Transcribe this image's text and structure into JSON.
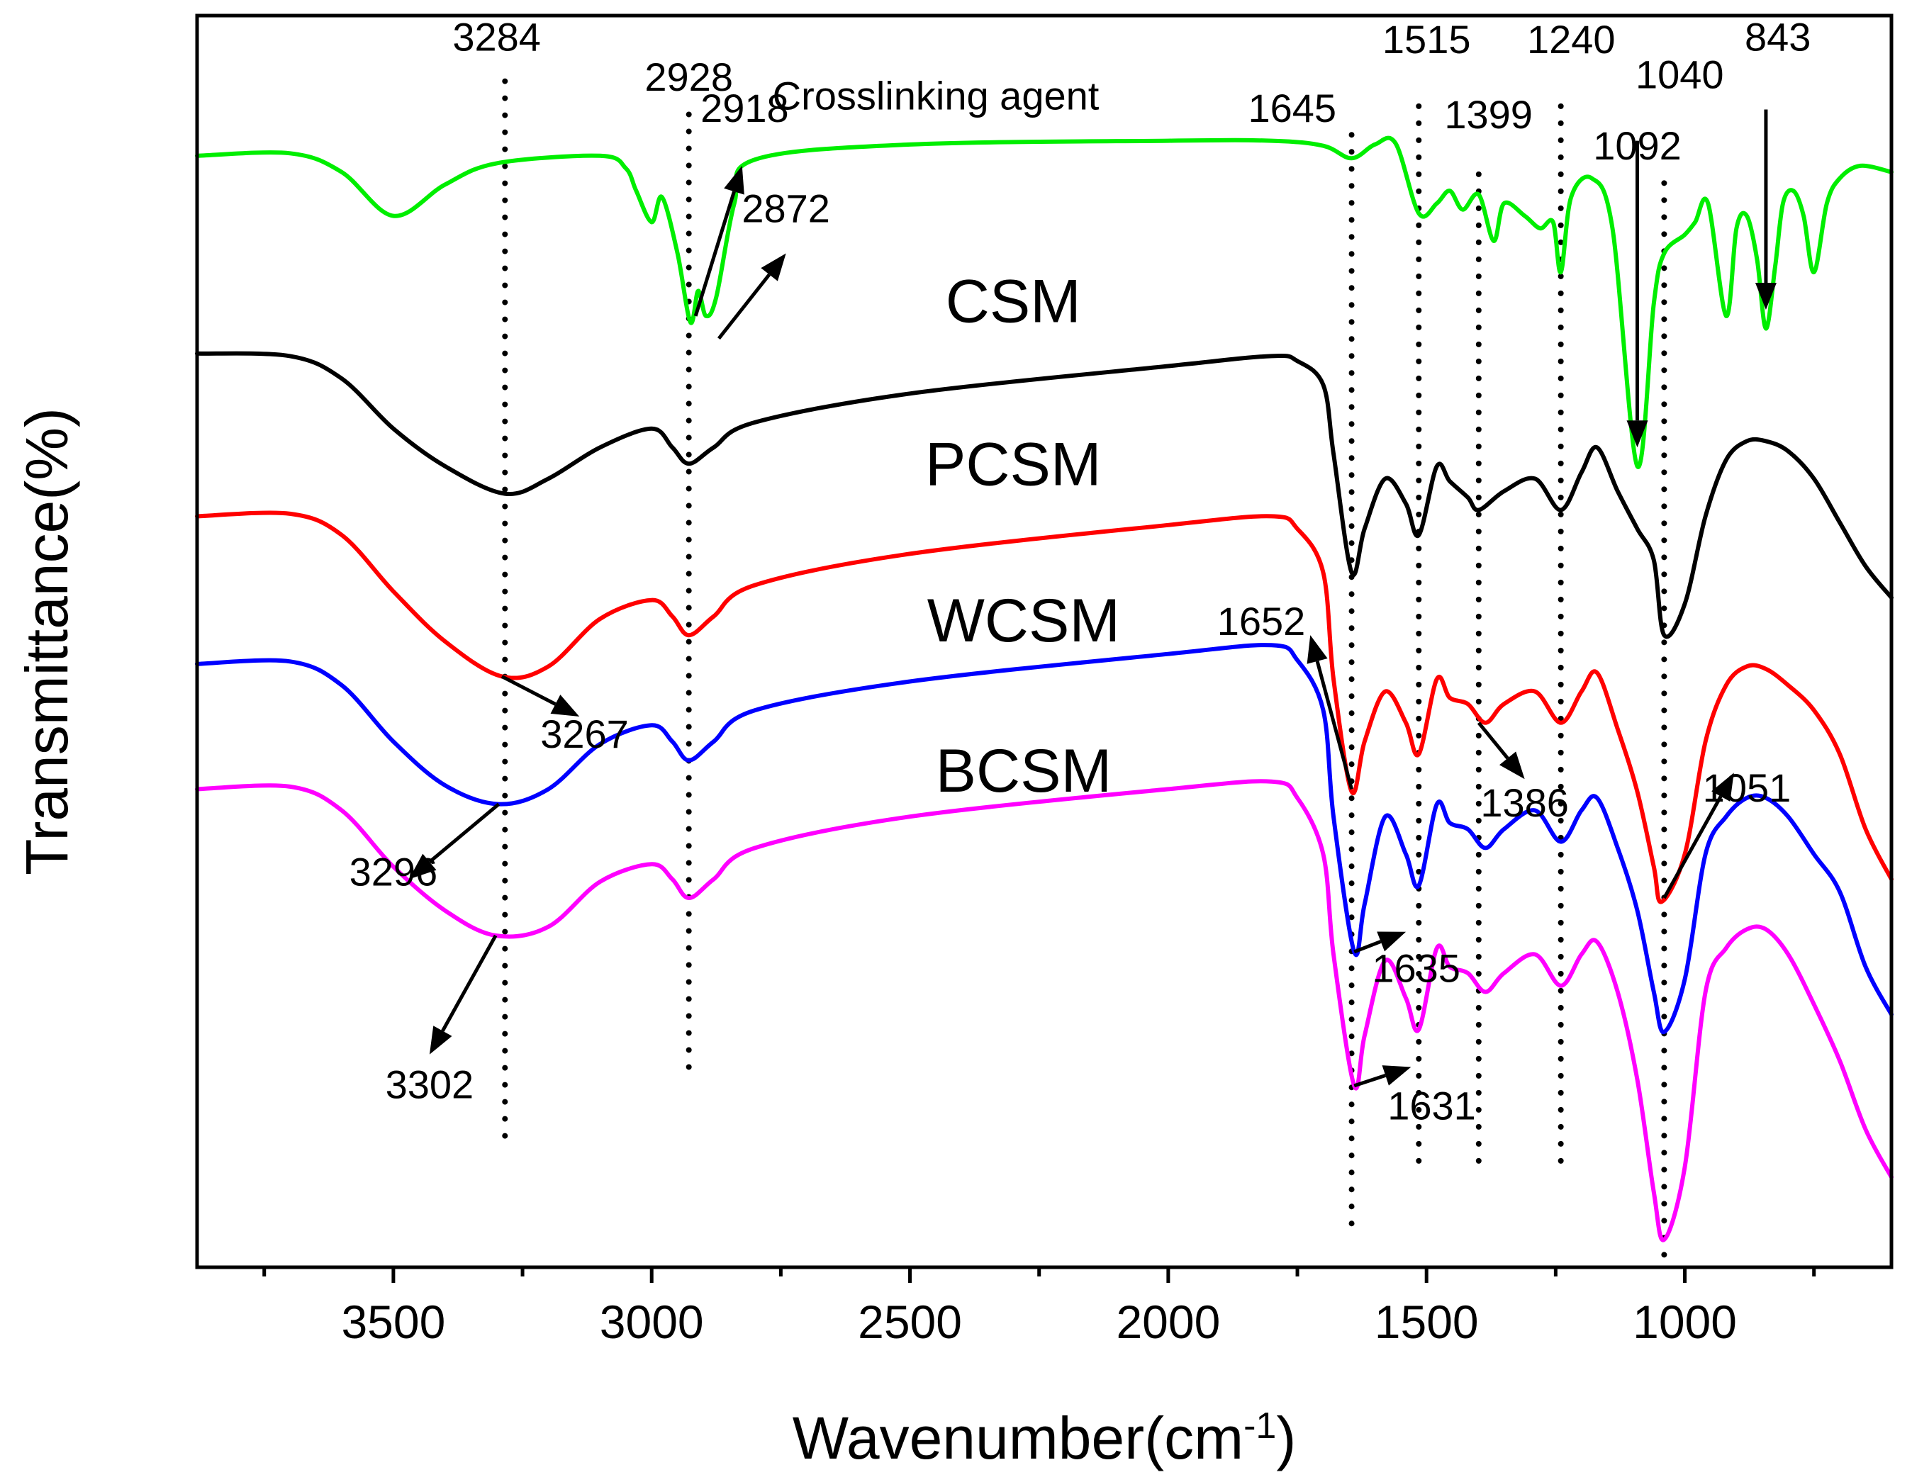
{
  "chart_data": {
    "type": "line",
    "title": "",
    "xlabel": "Wavenumber(cm",
    "xlabel_sup": "-1",
    "xlabel_close": ")",
    "ylabel": "Transmittance(%)",
    "xlim": [
      3880,
      600
    ],
    "x_reversed": true,
    "x_ticks": [
      3500,
      3000,
      2500,
      2000,
      1500,
      1000
    ],
    "x_tick_labels": [
      "3500",
      "3000",
      "2500",
      "2000",
      "1500",
      "1000"
    ],
    "x_minor_ticks": [
      3750,
      3250,
      2750,
      2250,
      1750,
      1250,
      750
    ],
    "y_tick_labels": [],
    "ylim": [
      0,
      10
    ],
    "grid": false,
    "series": [
      {
        "name": "Crosslinking agent",
        "color": "#00ee00",
        "points": [
          [
            3880,
            8.88
          ],
          [
            3700,
            8.9
          ],
          [
            3600,
            8.75
          ],
          [
            3500,
            8.4
          ],
          [
            3400,
            8.65
          ],
          [
            3300,
            8.82
          ],
          [
            3100,
            8.88
          ],
          [
            3050,
            8.78
          ],
          [
            3030,
            8.6
          ],
          [
            3000,
            8.35
          ],
          [
            2980,
            8.55
          ],
          [
            2950,
            8.1
          ],
          [
            2925,
            7.55
          ],
          [
            2910,
            7.8
          ],
          [
            2895,
            7.6
          ],
          [
            2875,
            7.75
          ],
          [
            2840,
            8.5
          ],
          [
            2800,
            8.85
          ],
          [
            2500,
            8.97
          ],
          [
            2000,
            9.0
          ],
          [
            1800,
            9.0
          ],
          [
            1700,
            8.96
          ],
          [
            1645,
            8.86
          ],
          [
            1600,
            8.97
          ],
          [
            1560,
            8.98
          ],
          [
            1515,
            8.42
          ],
          [
            1480,
            8.5
          ],
          [
            1455,
            8.6
          ],
          [
            1430,
            8.45
          ],
          [
            1399,
            8.57
          ],
          [
            1370,
            8.2
          ],
          [
            1350,
            8.5
          ],
          [
            1310,
            8.4
          ],
          [
            1280,
            8.3
          ],
          [
            1255,
            8.35
          ],
          [
            1240,
            7.95
          ],
          [
            1220,
            8.55
          ],
          [
            1180,
            8.7
          ],
          [
            1140,
            8.3
          ],
          [
            1092,
            6.4
          ],
          [
            1060,
            7.7
          ],
          [
            1040,
            8.1
          ],
          [
            1000,
            8.25
          ],
          [
            980,
            8.35
          ],
          [
            955,
            8.5
          ],
          [
            920,
            7.6
          ],
          [
            900,
            8.3
          ],
          [
            880,
            8.4
          ],
          [
            860,
            8.05
          ],
          [
            843,
            7.5
          ],
          [
            825,
            8.0
          ],
          [
            810,
            8.5
          ],
          [
            790,
            8.6
          ],
          [
            770,
            8.4
          ],
          [
            750,
            7.95
          ],
          [
            725,
            8.5
          ],
          [
            700,
            8.7
          ],
          [
            660,
            8.8
          ],
          [
            600,
            8.75
          ]
        ]
      },
      {
        "name": "CSM",
        "color": "#000000",
        "points": [
          [
            3880,
            7.3
          ],
          [
            3700,
            7.28
          ],
          [
            3600,
            7.1
          ],
          [
            3500,
            6.7
          ],
          [
            3400,
            6.4
          ],
          [
            3284,
            6.18
          ],
          [
            3200,
            6.3
          ],
          [
            3100,
            6.55
          ],
          [
            3000,
            6.7
          ],
          [
            2960,
            6.55
          ],
          [
            2928,
            6.42
          ],
          [
            2880,
            6.55
          ],
          [
            2800,
            6.75
          ],
          [
            2500,
            6.98
          ],
          [
            2000,
            7.2
          ],
          [
            1800,
            7.28
          ],
          [
            1750,
            7.24
          ],
          [
            1700,
            7.05
          ],
          [
            1680,
            6.5
          ],
          [
            1645,
            5.55
          ],
          [
            1620,
            5.9
          ],
          [
            1580,
            6.3
          ],
          [
            1540,
            6.1
          ],
          [
            1515,
            5.85
          ],
          [
            1480,
            6.4
          ],
          [
            1455,
            6.28
          ],
          [
            1420,
            6.15
          ],
          [
            1399,
            6.05
          ],
          [
            1350,
            6.2
          ],
          [
            1290,
            6.3
          ],
          [
            1240,
            6.05
          ],
          [
            1200,
            6.35
          ],
          [
            1170,
            6.55
          ],
          [
            1130,
            6.2
          ],
          [
            1092,
            5.9
          ],
          [
            1060,
            5.65
          ],
          [
            1040,
            5.05
          ],
          [
            1000,
            5.3
          ],
          [
            960,
            6.0
          ],
          [
            920,
            6.45
          ],
          [
            880,
            6.6
          ],
          [
            843,
            6.6
          ],
          [
            800,
            6.52
          ],
          [
            750,
            6.3
          ],
          [
            700,
            5.95
          ],
          [
            650,
            5.6
          ],
          [
            600,
            5.35
          ]
        ]
      },
      {
        "name": "PCSM",
        "color": "#ff0000",
        "points": [
          [
            3880,
            6.0
          ],
          [
            3700,
            6.02
          ],
          [
            3600,
            5.85
          ],
          [
            3500,
            5.4
          ],
          [
            3400,
            5.0
          ],
          [
            3290,
            4.72
          ],
          [
            3200,
            4.8
          ],
          [
            3100,
            5.18
          ],
          [
            3000,
            5.33
          ],
          [
            2960,
            5.2
          ],
          [
            2928,
            5.05
          ],
          [
            2880,
            5.2
          ],
          [
            2800,
            5.45
          ],
          [
            2500,
            5.7
          ],
          [
            2000,
            5.93
          ],
          [
            1800,
            6.0
          ],
          [
            1750,
            5.9
          ],
          [
            1700,
            5.55
          ],
          [
            1680,
            4.7
          ],
          [
            1645,
            3.8
          ],
          [
            1620,
            4.2
          ],
          [
            1580,
            4.6
          ],
          [
            1540,
            4.35
          ],
          [
            1515,
            4.1
          ],
          [
            1480,
            4.7
          ],
          [
            1455,
            4.55
          ],
          [
            1420,
            4.5
          ],
          [
            1386,
            4.35
          ],
          [
            1350,
            4.5
          ],
          [
            1290,
            4.6
          ],
          [
            1240,
            4.35
          ],
          [
            1200,
            4.6
          ],
          [
            1170,
            4.75
          ],
          [
            1130,
            4.3
          ],
          [
            1092,
            3.8
          ],
          [
            1060,
            3.2
          ],
          [
            1045,
            2.92
          ],
          [
            1000,
            3.3
          ],
          [
            960,
            4.2
          ],
          [
            920,
            4.65
          ],
          [
            880,
            4.8
          ],
          [
            843,
            4.78
          ],
          [
            800,
            4.65
          ],
          [
            750,
            4.45
          ],
          [
            700,
            4.1
          ],
          [
            650,
            3.5
          ],
          [
            600,
            3.1
          ]
        ]
      },
      {
        "name": "WCSM",
        "color": "#0000ff",
        "points": [
          [
            3880,
            4.82
          ],
          [
            3700,
            4.84
          ],
          [
            3600,
            4.65
          ],
          [
            3500,
            4.2
          ],
          [
            3400,
            3.85
          ],
          [
            3296,
            3.7
          ],
          [
            3200,
            3.82
          ],
          [
            3100,
            4.18
          ],
          [
            3000,
            4.33
          ],
          [
            2960,
            4.2
          ],
          [
            2928,
            4.05
          ],
          [
            2880,
            4.2
          ],
          [
            2800,
            4.45
          ],
          [
            2500,
            4.68
          ],
          [
            2000,
            4.9
          ],
          [
            1800,
            4.97
          ],
          [
            1750,
            4.85
          ],
          [
            1700,
            4.45
          ],
          [
            1680,
            3.6
          ],
          [
            1640,
            2.52
          ],
          [
            1620,
            2.9
          ],
          [
            1580,
            3.6
          ],
          [
            1540,
            3.3
          ],
          [
            1515,
            3.05
          ],
          [
            1480,
            3.7
          ],
          [
            1455,
            3.55
          ],
          [
            1420,
            3.5
          ],
          [
            1386,
            3.35
          ],
          [
            1350,
            3.5
          ],
          [
            1290,
            3.65
          ],
          [
            1240,
            3.4
          ],
          [
            1200,
            3.65
          ],
          [
            1170,
            3.75
          ],
          [
            1130,
            3.35
          ],
          [
            1092,
            2.85
          ],
          [
            1060,
            2.2
          ],
          [
            1040,
            1.88
          ],
          [
            1000,
            2.3
          ],
          [
            960,
            3.3
          ],
          [
            920,
            3.6
          ],
          [
            880,
            3.75
          ],
          [
            843,
            3.75
          ],
          [
            800,
            3.6
          ],
          [
            750,
            3.3
          ],
          [
            700,
            3.0
          ],
          [
            650,
            2.4
          ],
          [
            600,
            2.02
          ]
        ]
      },
      {
        "name": "BCSM",
        "color": "#ff00ff",
        "points": [
          [
            3880,
            3.82
          ],
          [
            3700,
            3.84
          ],
          [
            3600,
            3.65
          ],
          [
            3500,
            3.2
          ],
          [
            3400,
            2.85
          ],
          [
            3302,
            2.65
          ],
          [
            3200,
            2.72
          ],
          [
            3100,
            3.08
          ],
          [
            3000,
            3.22
          ],
          [
            2960,
            3.1
          ],
          [
            2928,
            2.95
          ],
          [
            2880,
            3.1
          ],
          [
            2800,
            3.35
          ],
          [
            2500,
            3.6
          ],
          [
            2000,
            3.82
          ],
          [
            1800,
            3.88
          ],
          [
            1750,
            3.75
          ],
          [
            1700,
            3.3
          ],
          [
            1680,
            2.5
          ],
          [
            1640,
            1.45
          ],
          [
            1620,
            1.85
          ],
          [
            1580,
            2.45
          ],
          [
            1540,
            2.15
          ],
          [
            1515,
            1.9
          ],
          [
            1480,
            2.55
          ],
          [
            1455,
            2.4
          ],
          [
            1420,
            2.35
          ],
          [
            1386,
            2.2
          ],
          [
            1350,
            2.35
          ],
          [
            1290,
            2.5
          ],
          [
            1240,
            2.25
          ],
          [
            1200,
            2.5
          ],
          [
            1170,
            2.6
          ],
          [
            1130,
            2.2
          ],
          [
            1092,
            1.5
          ],
          [
            1060,
            0.6
          ],
          [
            1040,
            0.22
          ],
          [
            1000,
            0.8
          ],
          [
            960,
            2.2
          ],
          [
            920,
            2.55
          ],
          [
            880,
            2.7
          ],
          [
            843,
            2.7
          ],
          [
            800,
            2.5
          ],
          [
            750,
            2.1
          ],
          [
            700,
            1.65
          ],
          [
            650,
            1.1
          ],
          [
            600,
            0.72
          ]
        ]
      }
    ],
    "series_labels": [
      {
        "text": "Crosslinking agent",
        "x": 2450,
        "y": 9.25
      },
      {
        "text": "CSM",
        "x": 2300,
        "y": 7.55
      },
      {
        "text": "PCSM",
        "x": 2300,
        "y": 6.25
      },
      {
        "text": "WCSM",
        "x": 2280,
        "y": 5.0
      },
      {
        "text": "BCSM",
        "x": 2280,
        "y": 3.8
      }
    ],
    "reference_lines": [
      {
        "x": 3284,
        "y1": 1.05,
        "y2": 9.55
      },
      {
        "x": 2928,
        "y1": 1.6,
        "y2": 9.25
      },
      {
        "x": 1645,
        "y1": 0.35,
        "y2": 9.05
      },
      {
        "x": 1515,
        "y1": 0.85,
        "y2": 9.3
      },
      {
        "x": 1399,
        "y1": 0.85,
        "y2": 8.8
      },
      {
        "x": 1240,
        "y1": 0.85,
        "y2": 9.3
      },
      {
        "x": 1040,
        "y1": 0.1,
        "y2": 8.75
      }
    ],
    "annotations": [
      {
        "text": "3284",
        "x": 3300,
        "y": 9.72
      },
      {
        "text": "2928",
        "x": 2928,
        "y": 9.4
      },
      {
        "text": "2918",
        "x": 2820,
        "y": 9.15
      },
      {
        "text": "2872",
        "x": 2740,
        "y": 8.35
      },
      {
        "text": "1645",
        "x": 1760,
        "y": 9.15
      },
      {
        "text": "1515",
        "x": 1500,
        "y": 9.7
      },
      {
        "text": "1399",
        "x": 1380,
        "y": 9.1
      },
      {
        "text": "1240",
        "x": 1220,
        "y": 9.7
      },
      {
        "text": "1040",
        "x": 1010,
        "y": 9.42
      },
      {
        "text": "1092",
        "x": 1092,
        "y": 8.85
      },
      {
        "text": "843",
        "x": 820,
        "y": 9.72
      },
      {
        "text": "3267",
        "x": 3130,
        "y": 4.15
      },
      {
        "text": "3296",
        "x": 3500,
        "y": 3.05
      },
      {
        "text": "3302",
        "x": 3430,
        "y": 1.35
      },
      {
        "text": "1652",
        "x": 1820,
        "y": 5.05
      },
      {
        "text": "1386",
        "x": 1310,
        "y": 3.6
      },
      {
        "text": "1051",
        "x": 880,
        "y": 3.72
      },
      {
        "text": "1635",
        "x": 1520,
        "y": 2.28
      },
      {
        "text": "1631",
        "x": 1490,
        "y": 1.18
      }
    ],
    "arrows": [
      {
        "from": [
          2915,
          7.6
        ],
        "to": [
          2825,
          8.8
        ]
      },
      {
        "from": [
          2870,
          7.42
        ],
        "to": [
          2740,
          8.1
        ]
      },
      {
        "from": [
          1092,
          9.0
        ],
        "to": [
          1092,
          6.55
        ]
      },
      {
        "from": [
          843,
          9.25
        ],
        "to": [
          843,
          7.65
        ]
      },
      {
        "from": [
          3290,
          4.72
        ],
        "to": [
          3140,
          4.4
        ]
      },
      {
        "from": [
          3296,
          3.7
        ],
        "to": [
          3470,
          3.1
        ]
      },
      {
        "from": [
          3302,
          2.65
        ],
        "to": [
          3430,
          1.7
        ]
      },
      {
        "from": [
          1645,
          3.82
        ],
        "to": [
          1725,
          5.05
        ]
      },
      {
        "from": [
          1399,
          4.35
        ],
        "to": [
          1310,
          3.9
        ]
      },
      {
        "from": [
          1040,
          2.95
        ],
        "to": [
          905,
          3.95
        ]
      },
      {
        "from": [
          1640,
          2.52
        ],
        "to": [
          1540,
          2.68
        ]
      },
      {
        "from": [
          1640,
          1.45
        ],
        "to": [
          1530,
          1.6
        ]
      }
    ]
  }
}
